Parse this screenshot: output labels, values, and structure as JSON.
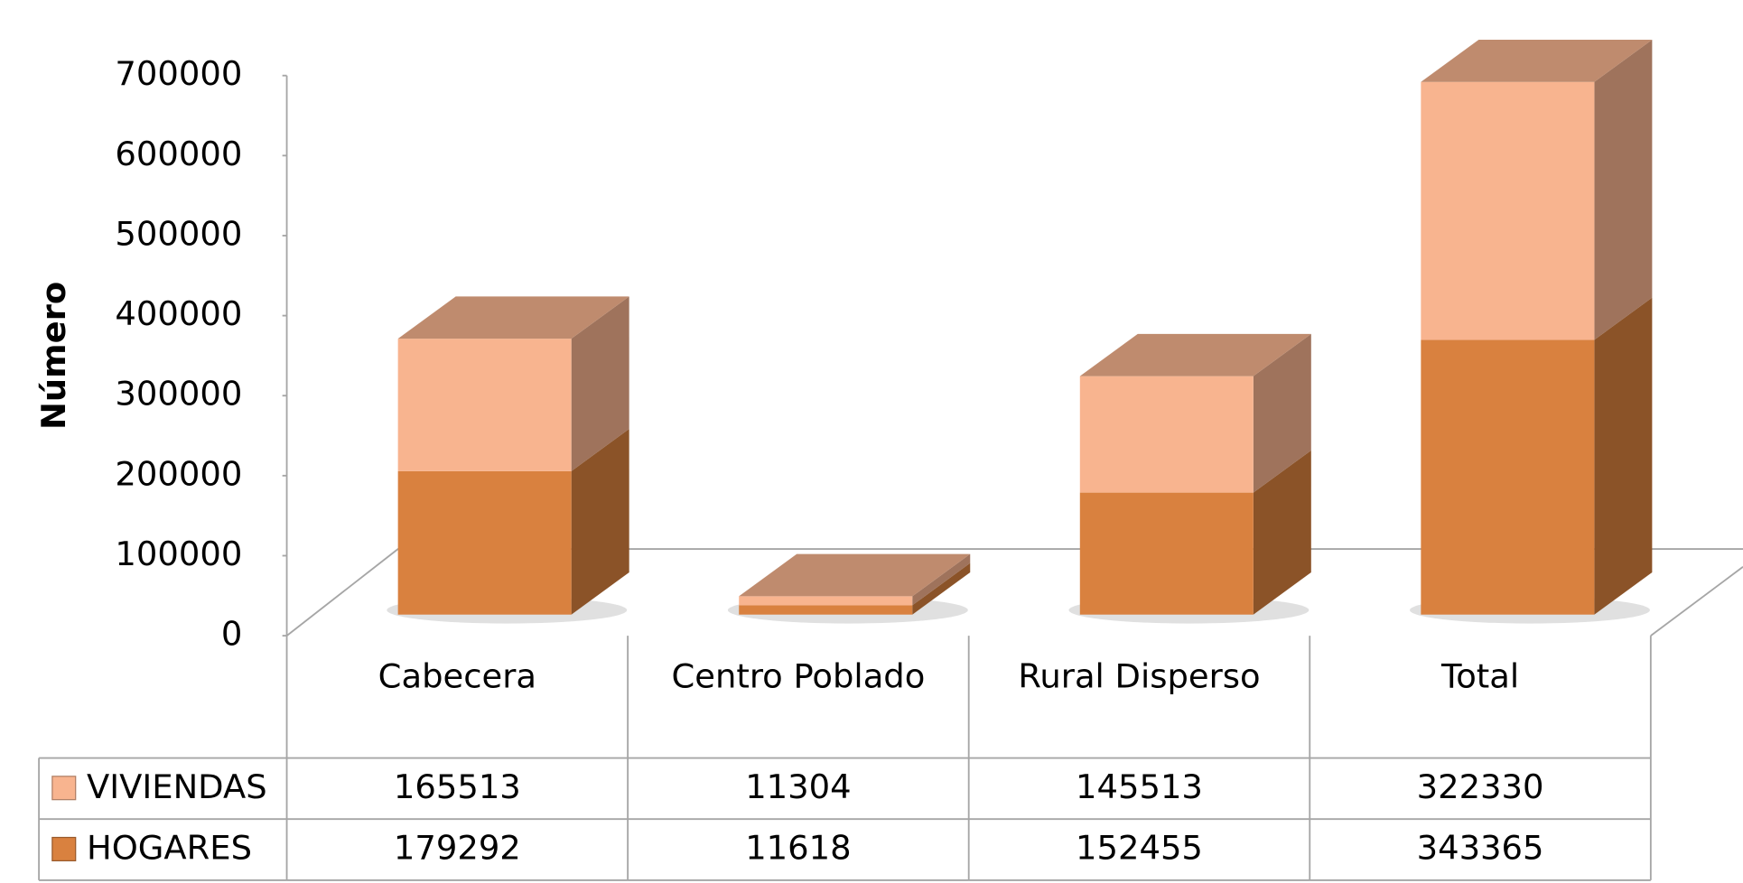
{
  "chart_data": {
    "type": "bar3d_stacked",
    "y_label": "Número",
    "categories": [
      "Cabecera",
      "Centro Poblado",
      "Rural Disperso",
      "Total"
    ],
    "series": [
      {
        "name": "VIVIENDAS",
        "color": "#f8b48f",
        "values": [
          165513,
          11304,
          145513,
          322330
        ]
      },
      {
        "name": "HOGARES",
        "color": "#d9813f",
        "values": [
          179292,
          11618,
          152455,
          343365
        ]
      }
    ],
    "ylim": [
      0,
      700000
    ],
    "yticks": [
      0,
      100000,
      200000,
      300000,
      400000,
      500000,
      600000,
      700000
    ],
    "data_table": true
  }
}
